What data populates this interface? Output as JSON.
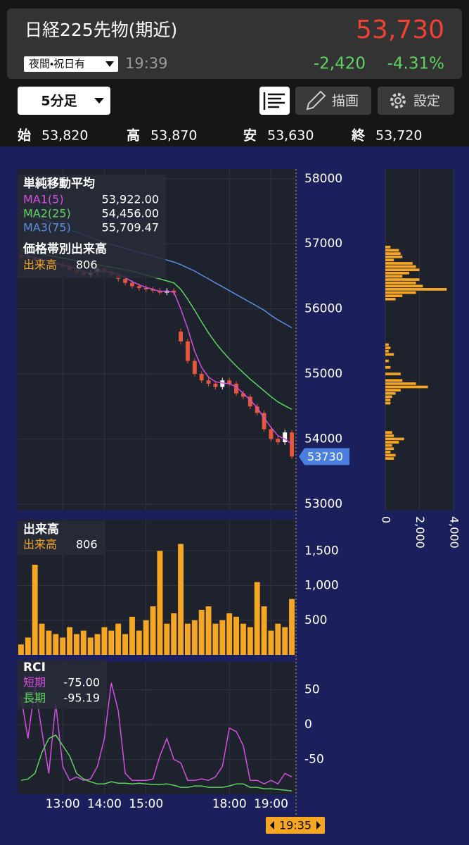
{
  "header": {
    "title": "日経225先物(期近)",
    "price": "53,730",
    "session": "夜間・祝日有",
    "time": "19:39",
    "change": "-2,420",
    "change_pct": "-4.31%"
  },
  "toolbar": {
    "interval": "5分足",
    "draw": "描画",
    "settings": "設定"
  },
  "ohlc": [
    {
      "label": "始",
      "value": "53,820"
    },
    {
      "label": "高",
      "value": "53,870"
    },
    {
      "label": "安",
      "value": "53,630"
    },
    {
      "label": "終",
      "value": "53,720"
    }
  ],
  "chart_data": [
    {
      "type": "candlestick",
      "title": "単純移動平均",
      "up_color": "#ffffff",
      "down_color": "#e4573d",
      "grid": true,
      "ylim": [
        52900,
        58150
      ],
      "yticks": [
        58000,
        57000,
        56000,
        55000,
        54000,
        53000
      ],
      "last_price": 53730,
      "last_price_color": "#4a7fe0",
      "open": [
        56820,
        56800,
        56780,
        56750,
        56720,
        56700,
        56680,
        56650,
        56600,
        56560,
        56520,
        56560,
        56620,
        56580,
        56520,
        56460,
        56400,
        56350,
        56320,
        56300,
        56280,
        56250,
        56280,
        55650,
        55500,
        55200,
        55000,
        54900,
        54850,
        54800,
        54900,
        54850,
        54700,
        54650,
        54500,
        54400,
        54150,
        54000,
        53950,
        54100
      ],
      "high": [
        56860,
        56840,
        56820,
        56790,
        56760,
        56740,
        56720,
        56690,
        56640,
        56600,
        56600,
        56660,
        56660,
        56620,
        56560,
        56500,
        56440,
        56390,
        56360,
        56340,
        56320,
        56320,
        56320,
        55700,
        55540,
        55240,
        55040,
        54940,
        54890,
        54940,
        54940,
        54890,
        54740,
        54690,
        54540,
        54440,
        54190,
        54040,
        54140,
        54140
      ],
      "low": [
        56760,
        56740,
        56710,
        56680,
        56660,
        56640,
        56610,
        56560,
        56520,
        56480,
        56480,
        56520,
        56540,
        56480,
        56420,
        56360,
        56310,
        56280,
        56260,
        56240,
        56210,
        56210,
        56210,
        55460,
        55160,
        54960,
        54860,
        54810,
        54760,
        54760,
        54810,
        54660,
        54610,
        54460,
        54360,
        54110,
        53960,
        53910,
        53910,
        53690
      ],
      "close": [
        56800,
        56780,
        56750,
        56720,
        56700,
        56680,
        56650,
        56600,
        56560,
        56520,
        56560,
        56620,
        56580,
        56520,
        56460,
        56400,
        56350,
        56320,
        56300,
        56280,
        56250,
        56280,
        56250,
        55500,
        55200,
        55000,
        54900,
        54850,
        54800,
        54900,
        54850,
        54700,
        54650,
        54500,
        54400,
        54150,
        54000,
        53950,
        54100,
        53730
      ],
      "series": [
        {
          "name": "MA1(5)",
          "color": "#d44fe0",
          "last_label": "53,922.00",
          "values": [
            56830,
            56810,
            56790,
            56760,
            56730,
            56710,
            56680,
            56650,
            56610,
            56570,
            56550,
            56570,
            56580,
            56560,
            56530,
            56480,
            56420,
            56370,
            56330,
            56300,
            56270,
            56270,
            56260,
            56000,
            55700,
            55350,
            55100,
            54950,
            54880,
            54860,
            54850,
            54800,
            54700,
            54600,
            54480,
            54320,
            54180,
            54050,
            54000,
            53922
          ]
        },
        {
          "name": "MA2(25)",
          "color": "#5fd35f",
          "last_label": "54,456.00",
          "values": [
            56900,
            56880,
            56860,
            56840,
            56820,
            56800,
            56780,
            56760,
            56740,
            56720,
            56700,
            56680,
            56660,
            56640,
            56620,
            56600,
            56580,
            56550,
            56520,
            56490,
            56460,
            56430,
            56400,
            56300,
            56150,
            55980,
            55800,
            55630,
            55480,
            55350,
            55230,
            55120,
            55020,
            54920,
            54830,
            54740,
            54650,
            54570,
            54510,
            54456
          ]
        },
        {
          "name": "MA3(75)",
          "color": "#5b8de0",
          "last_label": "55,709.47",
          "values": [
            57500,
            57460,
            57420,
            57380,
            57340,
            57300,
            57260,
            57220,
            57180,
            57140,
            57100,
            57060,
            57020,
            56990,
            56960,
            56930,
            56900,
            56870,
            56840,
            56810,
            56780,
            56750,
            56720,
            56680,
            56630,
            56580,
            56520,
            56460,
            56400,
            56340,
            56280,
            56220,
            56160,
            56100,
            56040,
            55980,
            55900,
            55830,
            55770,
            55709.47
          ]
        }
      ]
    },
    {
      "type": "bar",
      "orientation": "horizontal",
      "title": "価格帯別出来高",
      "grid": true,
      "ylim": [
        52900,
        58150
      ],
      "xlim": [
        0,
        4000
      ],
      "xticks": [
        0,
        {
          "value": 2000,
          "label": "2,000"
        },
        {
          "value": 4000,
          "label": "4,000"
        }
      ],
      "y": [
        56950,
        56900,
        56850,
        56800,
        56750,
        56700,
        56650,
        56600,
        56550,
        56500,
        56450,
        56400,
        56350,
        56300,
        56250,
        56200,
        56150,
        55450,
        55400,
        55350,
        55300,
        55200,
        55100,
        55000,
        54900,
        54850,
        54800,
        54750,
        54700,
        54650,
        54600,
        54550,
        54100,
        54050,
        54000,
        53950,
        53900,
        53850,
        53800,
        53750,
        53700
      ],
      "series": [
        {
          "name": "出来高",
          "color": "#f5a623",
          "last_label": "806",
          "values": [
            300,
            800,
            900,
            1000,
            500,
            1600,
            1800,
            2000,
            1400,
            1000,
            2000,
            1800,
            2200,
            3600,
            1800,
            1000,
            600,
            200,
            300,
            200,
            500,
            200,
            300,
            900,
            1000,
            1800,
            2500,
            900,
            600,
            400,
            300,
            300,
            400,
            500,
            1100,
            800,
            400,
            500,
            300,
            600,
            500
          ]
        }
      ]
    },
    {
      "type": "bar",
      "title": "出来高",
      "grid": true,
      "ylim": [
        0,
        1950
      ],
      "yticks": [
        {
          "value": 1500,
          "label": "1,500"
        },
        {
          "value": 1000,
          "label": "1,000"
        },
        500
      ],
      "series": [
        {
          "name": "出来高",
          "color": "#f5a623",
          "last_label": "806",
          "values": [
            150,
            250,
            1300,
            450,
            350,
            300,
            250,
            400,
            300,
            350,
            250,
            300,
            400,
            350,
            450,
            300,
            550,
            350,
            500,
            700,
            1500,
            450,
            600,
            1600,
            450,
            500,
            650,
            700,
            450,
            500,
            600,
            550,
            450,
            400,
            1050,
            700,
            350,
            450,
            400,
            806
          ]
        }
      ]
    },
    {
      "type": "line",
      "title": "RCI",
      "grid": true,
      "cursor_label": "19:35",
      "ylim": [
        -100,
        90
      ],
      "yticks": [
        50,
        0,
        -50
      ],
      "categories": [
        null,
        null,
        null,
        null,
        null,
        null,
        "13:00",
        null,
        null,
        null,
        null,
        null,
        "14:00",
        null,
        null,
        null,
        null,
        null,
        "15:00",
        null,
        null,
        null,
        null,
        null,
        null,
        null,
        null,
        null,
        null,
        null,
        "18:00",
        null,
        null,
        null,
        null,
        null,
        "19:00",
        null,
        null,
        null
      ],
      "series": [
        {
          "name": "短期",
          "color": "#d44fe0",
          "last_label": "-75.00",
          "values": [
            40,
            -20,
            55,
            -10,
            -70,
            30,
            -60,
            -80,
            -75,
            -80,
            -78,
            -60,
            -20,
            60,
            20,
            -70,
            -80,
            -80,
            -80,
            -78,
            -45,
            -20,
            -50,
            -55,
            -80,
            -80,
            -78,
            -80,
            -75,
            -60,
            -5,
            -10,
            -30,
            -80,
            -80,
            -85,
            -80,
            -85,
            -70,
            -75
          ]
        },
        {
          "name": "長期",
          "color": "#5fd35f",
          "last_label": "-95.19",
          "values": [
            -80,
            -78,
            -70,
            -40,
            -20,
            -15,
            -30,
            -45,
            -70,
            -78,
            -82,
            -85,
            -85,
            -82,
            -84,
            -84,
            -85,
            -84,
            -85,
            -86,
            -86,
            -85,
            -87,
            -90,
            -90,
            -88,
            -88,
            -90,
            -90,
            -90,
            -88,
            -85,
            -85,
            -90,
            -90,
            -92,
            -92,
            -93,
            -94,
            -95.19
          ]
        }
      ]
    }
  ]
}
